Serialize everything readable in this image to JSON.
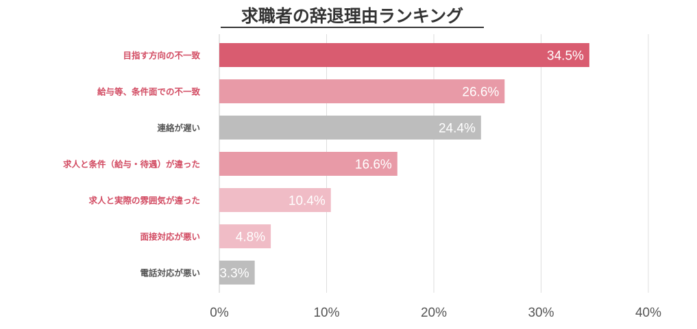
{
  "chart_data": {
    "type": "bar",
    "orientation": "horizontal",
    "title": "求職者の辞退理由ランキング",
    "categories": [
      "目指す方向の不一致",
      "給与等、条件面での不一致",
      "連絡が遅い",
      "求人と条件（給与・待遇）が違った",
      "求人と実際の雰囲気が違った",
      "面接対応が悪い",
      "電話対応が悪い"
    ],
    "values": [
      34.5,
      26.6,
      24.4,
      16.6,
      10.4,
      4.8,
      3.3
    ],
    "value_labels": [
      "34.5%",
      "26.6%",
      "24.4%",
      "16.6%",
      "10.4%",
      "4.8%",
      "3.3%"
    ],
    "bar_colors": [
      "#d95c70",
      "#e89aa7",
      "#bdbdbd",
      "#e89aa7",
      "#f0bcc6",
      "#f0bcc6",
      "#bdbdbd"
    ],
    "label_colors": [
      "#d24b62",
      "#d24b62",
      "#555555",
      "#d24b62",
      "#d24b62",
      "#d24b62",
      "#555555"
    ],
    "x_ticks": [
      0,
      10,
      20,
      30,
      40
    ],
    "x_tick_labels": [
      "0%",
      "10%",
      "20%",
      "30%",
      "40%"
    ],
    "xlim": [
      0,
      40
    ],
    "grid": true,
    "legend": "none"
  }
}
